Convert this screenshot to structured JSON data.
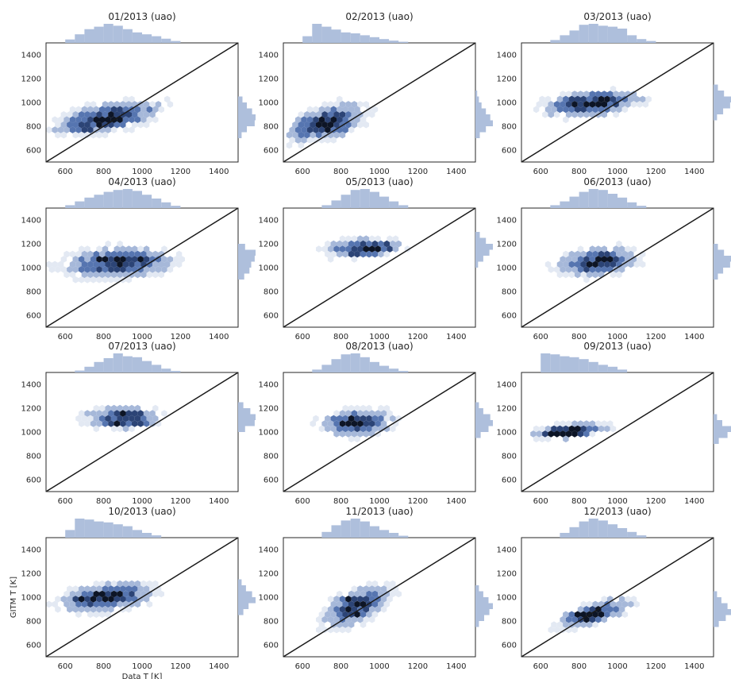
{
  "figure": {
    "xlabel": "Data T [K]",
    "ylabel": "GITM T [K]",
    "colors": {
      "hist": "#aebfdc",
      "hex_light": "#e3e9f3",
      "hex_mid": "#a6b8d9",
      "hex_strong": "#5675b0",
      "hex_dark": "#2c4476",
      "hex_peak": "#0d1526",
      "axes": "#262626",
      "diagonal": "#1a1a1a"
    }
  },
  "chart_data": [
    {
      "type": "hexbin",
      "title": "01/2013 (uao)",
      "xlim": [
        500,
        1500
      ],
      "ylim": [
        500,
        1500
      ],
      "xticks": [
        600,
        800,
        1000,
        1200,
        1400
      ],
      "yticks": [
        600,
        800,
        1000,
        1200,
        1400
      ],
      "reference_line": "y=x",
      "center": [
        820,
        870
      ],
      "spread": [
        170,
        90
      ],
      "corr": 0.55,
      "peaks": [
        [
          800,
          830
        ],
        [
          860,
          860
        ],
        [
          700,
          780
        ]
      ],
      "hist_x": {
        "bins": [
          600,
          650,
          700,
          750,
          800,
          850,
          900,
          950,
          1000,
          1050,
          1100,
          1150,
          1200
        ],
        "counts": [
          0.18,
          0.45,
          0.72,
          0.85,
          1.0,
          0.9,
          0.72,
          0.55,
          0.45,
          0.35,
          0.22,
          0.1
        ]
      },
      "hist_y": {
        "bins": [
          700,
          750,
          800,
          850,
          900,
          950,
          1000,
          1050
        ],
        "counts": [
          0.2,
          0.5,
          0.95,
          1.0,
          0.8,
          0.5,
          0.25
        ]
      }
    },
    {
      "type": "hexbin",
      "title": "02/2013 (uao)",
      "xlim": [
        500,
        1500
      ],
      "ylim": [
        500,
        1500
      ],
      "xticks": [
        600,
        800,
        1000,
        1200,
        1400
      ],
      "yticks": [
        600,
        800,
        1000,
        1200,
        1400
      ],
      "reference_line": "y=x",
      "center": [
        730,
        830
      ],
      "spread": [
        130,
        100
      ],
      "corr": 0.45,
      "peaks": [
        [
          680,
          790
        ],
        [
          720,
          830
        ],
        [
          760,
          760
        ]
      ],
      "hist_x": {
        "bins": [
          600,
          650,
          700,
          750,
          800,
          850,
          900,
          950,
          1000,
          1050,
          1100,
          1150
        ],
        "counts": [
          0.35,
          1.0,
          0.85,
          0.7,
          0.55,
          0.5,
          0.4,
          0.3,
          0.2,
          0.12,
          0.06
        ]
      },
      "hist_y": {
        "bins": [
          700,
          750,
          800,
          850,
          900,
          950,
          1000,
          1050,
          1100
        ],
        "counts": [
          0.25,
          0.6,
          1.0,
          0.85,
          0.6,
          0.35,
          0.2,
          0.1
        ]
      }
    },
    {
      "type": "hexbin",
      "title": "03/2013 (uao)",
      "xlim": [
        500,
        1500
      ],
      "ylim": [
        500,
        1500
      ],
      "xticks": [
        600,
        800,
        1000,
        1200,
        1400
      ],
      "yticks": [
        600,
        800,
        1000,
        1200,
        1400
      ],
      "reference_line": "y=x",
      "center": [
        870,
        990
      ],
      "spread": [
        160,
        70
      ],
      "corr": 0.35,
      "peaks": [
        [
          780,
          1010
        ],
        [
          870,
          990
        ],
        [
          950,
          1020
        ]
      ],
      "hist_x": {
        "bins": [
          650,
          700,
          750,
          800,
          850,
          900,
          950,
          1000,
          1050,
          1100,
          1150,
          1200
        ],
        "counts": [
          0.15,
          0.4,
          0.65,
          0.95,
          1.0,
          0.9,
          0.85,
          0.75,
          0.4,
          0.2,
          0.1
        ]
      },
      "hist_y": {
        "bins": [
          850,
          900,
          950,
          1000,
          1050,
          1100,
          1150
        ],
        "counts": [
          0.2,
          0.55,
          0.95,
          1.0,
          0.6,
          0.25
        ]
      }
    },
    {
      "type": "hexbin",
      "title": "04/2013 (uao)",
      "xlim": [
        500,
        1500
      ],
      "ylim": [
        500,
        1500
      ],
      "xticks": [
        600,
        800,
        1000,
        1200,
        1400
      ],
      "yticks": [
        600,
        800,
        1000,
        1200,
        1400
      ],
      "reference_line": "y=x",
      "center": [
        880,
        1040
      ],
      "spread": [
        180,
        80
      ],
      "corr": 0.15,
      "peaks": [
        [
          900,
          1090
        ],
        [
          1000,
          1090
        ],
        [
          800,
          1080
        ]
      ],
      "hist_x": {
        "bins": [
          600,
          650,
          700,
          750,
          800,
          850,
          900,
          950,
          1000,
          1050,
          1100,
          1150,
          1200
        ],
        "counts": [
          0.15,
          0.35,
          0.55,
          0.7,
          0.85,
          0.95,
          1.0,
          0.9,
          0.7,
          0.5,
          0.3,
          0.12
        ]
      },
      "hist_y": {
        "bins": [
          900,
          950,
          1000,
          1050,
          1100,
          1150,
          1200
        ],
        "counts": [
          0.35,
          0.65,
          0.75,
          0.95,
          1.0,
          0.4
        ]
      }
    },
    {
      "type": "hexbin",
      "title": "05/2013 (uao)",
      "xlim": [
        500,
        1500
      ],
      "ylim": [
        500,
        1500
      ],
      "xticks": [
        600,
        800,
        1000,
        1200,
        1400
      ],
      "yticks": [
        600,
        800,
        1000,
        1200,
        1400
      ],
      "reference_line": "y=x",
      "center": [
        920,
        1160
      ],
      "spread": [
        120,
        55
      ],
      "corr": 0.2,
      "peaks": [
        [
          1050,
          1180
        ],
        [
          950,
          1150
        ],
        [
          880,
          1120
        ]
      ],
      "hist_x": {
        "bins": [
          700,
          750,
          800,
          850,
          900,
          950,
          1000,
          1050,
          1100,
          1150
        ],
        "counts": [
          0.15,
          0.4,
          0.7,
          0.95,
          1.0,
          0.85,
          0.6,
          0.35,
          0.15
        ]
      },
      "hist_y": {
        "bins": [
          1000,
          1050,
          1100,
          1150,
          1200,
          1250,
          1300
        ],
        "counts": [
          0.15,
          0.45,
          0.8,
          1.0,
          0.6,
          0.25
        ]
      }
    },
    {
      "type": "hexbin",
      "title": "06/2013 (uao)",
      "xlim": [
        500,
        1500
      ],
      "ylim": [
        500,
        1500
      ],
      "xticks": [
        600,
        800,
        1000,
        1200,
        1400
      ],
      "yticks": [
        600,
        800,
        1000,
        1200,
        1400
      ],
      "reference_line": "y=x",
      "center": [
        900,
        1050
      ],
      "spread": [
        130,
        75
      ],
      "corr": 0.25,
      "peaks": [
        [
          950,
          1060
        ],
        [
          860,
          1010
        ],
        [
          900,
          1040
        ]
      ],
      "hist_x": {
        "bins": [
          650,
          700,
          750,
          800,
          850,
          900,
          950,
          1000,
          1050,
          1100,
          1150
        ],
        "counts": [
          0.15,
          0.35,
          0.6,
          0.85,
          1.0,
          0.95,
          0.75,
          0.55,
          0.3,
          0.12
        ]
      },
      "hist_y": {
        "bins": [
          900,
          950,
          1000,
          1050,
          1100,
          1150,
          1200
        ],
        "counts": [
          0.25,
          0.55,
          0.95,
          1.0,
          0.6,
          0.25
        ]
      }
    },
    {
      "type": "hexbin",
      "title": "07/2013 (uao)",
      "xlim": [
        500,
        1500
      ],
      "ylim": [
        500,
        1500
      ],
      "xticks": [
        600,
        800,
        1000,
        1200,
        1400
      ],
      "yticks": [
        600,
        800,
        1000,
        1200,
        1400
      ],
      "reference_line": "y=x",
      "center": [
        900,
        1120
      ],
      "spread": [
        120,
        60
      ],
      "corr": 0.05,
      "peaks": [
        [
          860,
          1070
        ],
        [
          1000,
          1060
        ],
        [
          900,
          1140
        ]
      ],
      "hist_x": {
        "bins": [
          650,
          700,
          750,
          800,
          850,
          900,
          950,
          1000,
          1050,
          1100,
          1150,
          1200
        ],
        "counts": [
          0.1,
          0.3,
          0.55,
          0.75,
          1.0,
          0.85,
          0.8,
          0.6,
          0.4,
          0.2,
          0.08
        ]
      },
      "hist_y": {
        "bins": [
          1000,
          1050,
          1100,
          1150,
          1200,
          1250
        ],
        "counts": [
          0.4,
          0.95,
          1.0,
          0.7,
          0.3
        ]
      }
    },
    {
      "type": "hexbin",
      "title": "08/2013 (uao)",
      "xlim": [
        500,
        1500
      ],
      "ylim": [
        500,
        1500
      ],
      "xticks": [
        600,
        800,
        1000,
        1200,
        1400
      ],
      "yticks": [
        600,
        800,
        1000,
        1200,
        1400
      ],
      "reference_line": "y=x",
      "center": [
        880,
        1080
      ],
      "spread": [
        120,
        70
      ],
      "corr": 0.1,
      "peaks": [
        [
          860,
          1080
        ],
        [
          820,
          1060
        ],
        [
          900,
          1040
        ]
      ],
      "hist_x": {
        "bins": [
          650,
          700,
          750,
          800,
          850,
          900,
          950,
          1000,
          1050,
          1100,
          1150
        ],
        "counts": [
          0.15,
          0.4,
          0.7,
          0.95,
          1.0,
          0.8,
          0.55,
          0.35,
          0.2,
          0.08
        ]
      },
      "hist_y": {
        "bins": [
          950,
          1000,
          1050,
          1100,
          1150,
          1200,
          1250
        ],
        "counts": [
          0.3,
          0.75,
          1.0,
          0.85,
          0.45,
          0.2
        ]
      }
    },
    {
      "type": "hexbin",
      "title": "09/2013 (uao)",
      "xlim": [
        500,
        1500
      ],
      "ylim": [
        500,
        1500
      ],
      "xticks": [
        600,
        800,
        1000,
        1200,
        1400
      ],
      "yticks": [
        600,
        800,
        1000,
        1200,
        1400
      ],
      "reference_line": "y=x",
      "center": [
        760,
        1010
      ],
      "spread": [
        120,
        45
      ],
      "corr": 0.45,
      "peaks": [
        [
          700,
          1000
        ],
        [
          650,
          1000
        ],
        [
          780,
          990
        ]
      ],
      "hist_x": {
        "bins": [
          600,
          650,
          700,
          750,
          800,
          850,
          900,
          950,
          1000,
          1050
        ],
        "counts": [
          1.0,
          0.95,
          0.85,
          0.8,
          0.7,
          0.55,
          0.4,
          0.3,
          0.15
        ]
      },
      "hist_y": {
        "bins": [
          900,
          950,
          1000,
          1050,
          1100,
          1150
        ],
        "counts": [
          0.3,
          0.8,
          1.0,
          0.5,
          0.2
        ]
      }
    },
    {
      "type": "hexbin",
      "title": "10/2013 (uao)",
      "xlim": [
        500,
        1500
      ],
      "ylim": [
        500,
        1500
      ],
      "xticks": [
        600,
        800,
        1000,
        1200,
        1400
      ],
      "yticks": [
        600,
        800,
        1000,
        1200,
        1400
      ],
      "reference_line": "y=x",
      "center": [
        820,
        1000
      ],
      "spread": [
        150,
        80
      ],
      "corr": 0.35,
      "peaks": [
        [
          780,
          1020
        ],
        [
          680,
          990
        ],
        [
          850,
          1010
        ]
      ],
      "hist_x": {
        "bins": [
          600,
          650,
          700,
          750,
          800,
          850,
          900,
          950,
          1000,
          1050,
          1100
        ],
        "counts": [
          0.4,
          1.0,
          0.95,
          0.85,
          0.8,
          0.7,
          0.6,
          0.4,
          0.25,
          0.12
        ]
      },
      "hist_y": {
        "bins": [
          850,
          900,
          950,
          1000,
          1050,
          1100,
          1150
        ],
        "counts": [
          0.3,
          0.6,
          1.0,
          0.8,
          0.45,
          0.2
        ]
      }
    },
    {
      "type": "hexbin",
      "title": "11/2013 (uao)",
      "xlim": [
        500,
        1500
      ],
      "ylim": [
        500,
        1500
      ],
      "xticks": [
        600,
        800,
        1000,
        1200,
        1400
      ],
      "yticks": [
        600,
        800,
        1000,
        1200,
        1400
      ],
      "reference_line": "y=x",
      "center": [
        880,
        920
      ],
      "spread": [
        110,
        110
      ],
      "corr": 0.6,
      "peaks": [
        [
          820,
          980
        ],
        [
          860,
          960
        ],
        [
          880,
          870
        ]
      ],
      "hist_x": {
        "bins": [
          700,
          750,
          800,
          850,
          900,
          950,
          1000,
          1050,
          1100,
          1150
        ],
        "counts": [
          0.3,
          0.65,
          0.9,
          1.0,
          0.85,
          0.6,
          0.4,
          0.25,
          0.1
        ]
      },
      "hist_y": {
        "bins": [
          750,
          800,
          850,
          900,
          950,
          1000,
          1050,
          1100
        ],
        "counts": [
          0.2,
          0.5,
          0.8,
          1.0,
          0.75,
          0.45,
          0.2
        ]
      }
    },
    {
      "type": "hexbin",
      "title": "12/2013 (uao)",
      "xlim": [
        500,
        1500
      ],
      "ylim": [
        500,
        1500
      ],
      "xticks": [
        600,
        800,
        1000,
        1200,
        1400
      ],
      "yticks": [
        600,
        800,
        1000,
        1200,
        1400
      ],
      "reference_line": "y=x",
      "center": [
        880,
        860
      ],
      "spread": [
        120,
        80
      ],
      "corr": 0.7,
      "peaks": [
        [
          850,
          840
        ],
        [
          800,
          850
        ],
        [
          880,
          860
        ]
      ],
      "hist_x": {
        "bins": [
          700,
          750,
          800,
          850,
          900,
          950,
          1000,
          1050,
          1100,
          1150
        ],
        "counts": [
          0.25,
          0.55,
          0.85,
          1.0,
          0.9,
          0.7,
          0.5,
          0.3,
          0.12
        ]
      },
      "hist_y": {
        "bins": [
          750,
          800,
          850,
          900,
          950,
          1000,
          1050
        ],
        "counts": [
          0.3,
          0.7,
          1.0,
          0.8,
          0.45,
          0.2
        ]
      }
    }
  ]
}
